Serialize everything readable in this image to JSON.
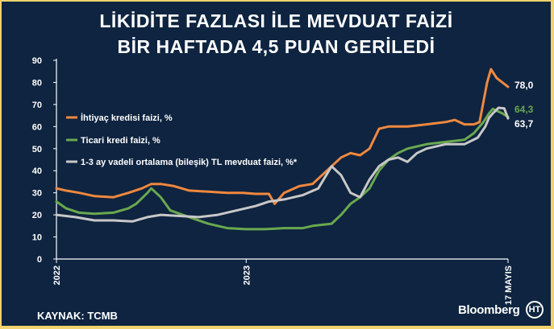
{
  "header": {
    "title_line1": "LİKİDİTE FAZLASI İLE MEVDUAT FAİZİ",
    "title_line2": "BİR HAFTADA 4,5 PUAN GERİLEDİ"
  },
  "footer": {
    "source": "KAYNAK: TCMB",
    "brand": "Bloomberg",
    "logo_text": "HT"
  },
  "chart_data": {
    "type": "line",
    "title": "LİKİDİTE FAZLASI İLE MEVDUAT FAİZİ BİR HAFTADA 4,5 PUAN GERİLEDİ",
    "xlabel": "",
    "ylabel": "",
    "ylim": [
      0,
      90
    ],
    "yticks": [
      0,
      10,
      20,
      30,
      40,
      50,
      60,
      70,
      80,
      90
    ],
    "xrange": [
      2022.0,
      2024.38
    ],
    "xticks": [
      {
        "x": 2022.0,
        "label": "2022"
      },
      {
        "x": 2023.0,
        "label": "2023"
      },
      {
        "x": 2024.38,
        "label": "17 MAYIS"
      }
    ],
    "grid": false,
    "legend": "top-left",
    "series": [
      {
        "name": "İhtiyaç kredisi faizi, %",
        "color": "#f0883e",
        "end_label": "78,0",
        "points": [
          [
            2022.0,
            32
          ],
          [
            2022.05,
            31
          ],
          [
            2022.12,
            30
          ],
          [
            2022.2,
            28.5
          ],
          [
            2022.3,
            28
          ],
          [
            2022.38,
            30
          ],
          [
            2022.45,
            32
          ],
          [
            2022.5,
            34
          ],
          [
            2022.55,
            34
          ],
          [
            2022.62,
            33
          ],
          [
            2022.7,
            31
          ],
          [
            2022.8,
            30.5
          ],
          [
            2022.9,
            30
          ],
          [
            2022.98,
            30
          ],
          [
            2023.05,
            29.5
          ],
          [
            2023.12,
            29.5
          ],
          [
            2023.15,
            25
          ],
          [
            2023.2,
            30
          ],
          [
            2023.28,
            33
          ],
          [
            2023.35,
            34
          ],
          [
            2023.4,
            38
          ],
          [
            2023.45,
            42
          ],
          [
            2023.5,
            46
          ],
          [
            2023.55,
            48
          ],
          [
            2023.6,
            47
          ],
          [
            2023.65,
            50
          ],
          [
            2023.7,
            59
          ],
          [
            2023.75,
            60
          ],
          [
            2023.85,
            60
          ],
          [
            2023.95,
            61
          ],
          [
            2024.05,
            62
          ],
          [
            2024.1,
            63
          ],
          [
            2024.15,
            61
          ],
          [
            2024.2,
            61
          ],
          [
            2024.23,
            62
          ],
          [
            2024.27,
            80
          ],
          [
            2024.29,
            86
          ],
          [
            2024.32,
            82
          ],
          [
            2024.35,
            80
          ],
          [
            2024.38,
            78
          ]
        ]
      },
      {
        "name": "Ticari kredi faizi, %",
        "color": "#6aa84f",
        "end_label": "64,3",
        "points": [
          [
            2022.0,
            26
          ],
          [
            2022.05,
            23
          ],
          [
            2022.12,
            21
          ],
          [
            2022.2,
            20.5
          ],
          [
            2022.3,
            21
          ],
          [
            2022.38,
            23
          ],
          [
            2022.42,
            25
          ],
          [
            2022.48,
            30
          ],
          [
            2022.5,
            32
          ],
          [
            2022.55,
            28
          ],
          [
            2022.6,
            22
          ],
          [
            2022.7,
            19
          ],
          [
            2022.8,
            16
          ],
          [
            2022.9,
            14
          ],
          [
            2023.0,
            13.5
          ],
          [
            2023.1,
            13.5
          ],
          [
            2023.2,
            14
          ],
          [
            2023.3,
            14
          ],
          [
            2023.35,
            15
          ],
          [
            2023.45,
            16
          ],
          [
            2023.5,
            20
          ],
          [
            2023.55,
            25
          ],
          [
            2023.6,
            28
          ],
          [
            2023.65,
            32
          ],
          [
            2023.7,
            40
          ],
          [
            2023.75,
            45
          ],
          [
            2023.8,
            48
          ],
          [
            2023.85,
            50
          ],
          [
            2023.95,
            52
          ],
          [
            2024.05,
            53
          ],
          [
            2024.15,
            54
          ],
          [
            2024.2,
            57
          ],
          [
            2024.25,
            62
          ],
          [
            2024.28,
            66
          ],
          [
            2024.3,
            68
          ],
          [
            2024.35,
            66
          ],
          [
            2024.38,
            64.3
          ]
        ]
      },
      {
        "name": "1-3 ay vadeli ortalama (bileşik) TL mevduat faizi, %*",
        "color": "#c8c8c8",
        "end_label": "63,7",
        "points": [
          [
            2022.0,
            20
          ],
          [
            2022.1,
            19
          ],
          [
            2022.2,
            17.5
          ],
          [
            2022.3,
            17.5
          ],
          [
            2022.4,
            17
          ],
          [
            2022.48,
            19
          ],
          [
            2022.55,
            20
          ],
          [
            2022.65,
            19.5
          ],
          [
            2022.75,
            19
          ],
          [
            2022.85,
            20
          ],
          [
            2022.95,
            22
          ],
          [
            2023.05,
            24
          ],
          [
            2023.12,
            26
          ],
          [
            2023.2,
            27
          ],
          [
            2023.3,
            29
          ],
          [
            2023.38,
            32
          ],
          [
            2023.45,
            42
          ],
          [
            2023.5,
            38
          ],
          [
            2023.55,
            30
          ],
          [
            2023.6,
            28
          ],
          [
            2023.65,
            36
          ],
          [
            2023.7,
            42
          ],
          [
            2023.75,
            45
          ],
          [
            2023.8,
            46
          ],
          [
            2023.85,
            44
          ],
          [
            2023.9,
            48
          ],
          [
            2023.95,
            50
          ],
          [
            2024.05,
            52
          ],
          [
            2024.15,
            52
          ],
          [
            2024.22,
            55
          ],
          [
            2024.26,
            60
          ],
          [
            2024.28,
            64
          ],
          [
            2024.3,
            66
          ],
          [
            2024.33,
            68.5
          ],
          [
            2024.36,
            68.2
          ],
          [
            2024.38,
            63.7
          ]
        ]
      }
    ]
  }
}
